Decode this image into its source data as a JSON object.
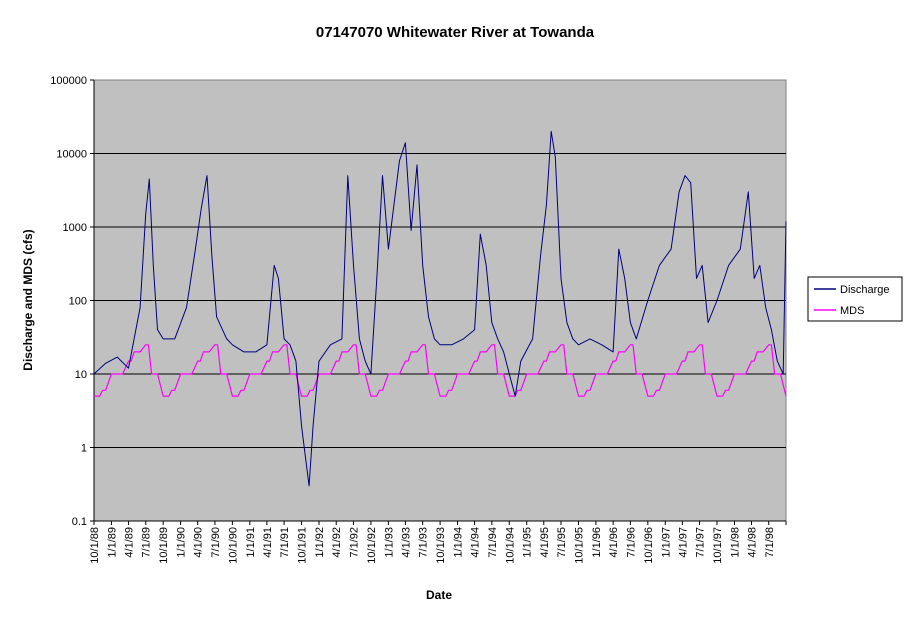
{
  "chart_data": {
    "type": "line",
    "title": "07147070 Whitewater River at Towanda",
    "xlabel": "Date",
    "ylabel": "Discharge and MDS (cfs)",
    "y_scale": "log",
    "ylim": [
      0.1,
      100000
    ],
    "y_ticks": [
      "0.1",
      "1",
      "10",
      "100",
      "1000",
      "10000",
      "100000"
    ],
    "xlim": [
      "10/1/88",
      "9/30/98"
    ],
    "x_ticks": [
      "10/1/88",
      "1/1/89",
      "4/1/89",
      "7/1/89",
      "10/1/89",
      "1/1/90",
      "4/1/90",
      "7/1/90",
      "10/1/90",
      "1/1/91",
      "4/1/91",
      "7/1/91",
      "10/1/91",
      "1/1/92",
      "4/1/92",
      "7/1/92",
      "10/1/92",
      "1/1/93",
      "4/1/93",
      "7/1/93",
      "10/1/93",
      "1/1/94",
      "4/1/94",
      "7/1/94",
      "10/1/94",
      "1/1/95",
      "4/1/95",
      "7/1/95",
      "10/1/95",
      "1/1/96",
      "4/1/96",
      "7/1/96",
      "10/1/96",
      "1/1/97",
      "4/1/97",
      "7/1/97",
      "10/1/97",
      "1/1/98",
      "4/1/98",
      "7/1/98"
    ],
    "grid": true,
    "plot_background": "#c0c0c0",
    "legend_position": "right",
    "series": [
      {
        "name": "Discharge",
        "color": "#000080",
        "x": [
          "10/1/88",
          "12/1/88",
          "2/1/89",
          "4/1/89",
          "6/1/89",
          "7/1/89",
          "7/20/89",
          "8/10/89",
          "9/1/89",
          "10/1/89",
          "12/1/89",
          "2/1/90",
          "3/20/90",
          "4/20/90",
          "5/20/90",
          "6/15/90",
          "7/10/90",
          "8/10/90",
          "9/1/90",
          "10/1/90",
          "12/1/90",
          "2/1/91",
          "4/1/91",
          "5/10/91",
          "6/1/91",
          "7/1/91",
          "8/1/91",
          "9/1/91",
          "10/1/91",
          "10/20/91",
          "11/10/91",
          "12/1/91",
          "1/1/92",
          "3/1/92",
          "5/1/92",
          "6/1/92",
          "7/1/92",
          "8/1/92",
          "9/1/92",
          "10/1/92",
          "11/1/92",
          "12/1/92",
          "1/1/93",
          "3/1/93",
          "4/1/93",
          "5/1/93",
          "6/1/93",
          "7/1/93",
          "8/1/93",
          "9/1/93",
          "10/1/93",
          "12/1/93",
          "2/1/94",
          "4/1/94",
          "5/1/94",
          "6/1/94",
          "7/1/94",
          "8/1/94",
          "9/1/94",
          "10/1/94",
          "11/1/94",
          "12/1/94",
          "2/1/95",
          "3/15/95",
          "4/15/95",
          "5/10/95",
          "6/1/95",
          "7/1/95",
          "8/1/95",
          "9/1/95",
          "10/1/95",
          "12/1/95",
          "2/1/96",
          "4/1/96",
          "5/1/96",
          "6/1/96",
          "7/1/96",
          "8/1/96",
          "10/1/96",
          "12/1/96",
          "2/1/97",
          "3/15/97",
          "4/15/97",
          "5/15/97",
          "6/15/97",
          "7/15/97",
          "8/15/97",
          "10/1/97",
          "12/1/97",
          "2/1/98",
          "3/15/98",
          "4/15/98",
          "5/15/98",
          "6/15/98",
          "7/15/98",
          "8/15/98",
          "9/15/98",
          "9/30/98"
        ],
        "values": [
          10,
          14,
          17,
          12,
          80,
          1500,
          4500,
          300,
          40,
          30,
          30,
          80,
          500,
          1800,
          5000,
          400,
          60,
          40,
          30,
          25,
          20,
          20,
          25,
          300,
          200,
          30,
          25,
          15,
          2,
          0.8,
          0.3,
          2,
          15,
          25,
          30,
          5000,
          300,
          30,
          15,
          10,
          200,
          5000,
          500,
          8000,
          14000,
          900,
          7000,
          300,
          60,
          30,
          25,
          25,
          30,
          40,
          800,
          300,
          50,
          30,
          20,
          10,
          5,
          15,
          30,
          400,
          2000,
          20000,
          9000,
          200,
          50,
          30,
          25,
          30,
          25,
          20,
          500,
          200,
          50,
          30,
          100,
          300,
          500,
          3000,
          5000,
          4000,
          200,
          300,
          50,
          100,
          300,
          500,
          3000,
          200,
          300,
          80,
          40,
          15,
          10,
          1200
        ]
      },
      {
        "name": "MDS",
        "color": "#ff00ff",
        "x": [
          "10/1/88",
          "10/15/88",
          "10/31/88",
          "11/15/88",
          "12/1/88",
          "1/1/89",
          "2/1/89",
          "3/1/89",
          "4/1/89",
          "4/15/89",
          "5/1/89",
          "6/1/89",
          "7/1/89",
          "7/15/89",
          "8/1/89",
          "9/1/89",
          "10/1/89",
          "10/15/89",
          "10/31/89",
          "11/15/89",
          "12/1/89",
          "1/1/90",
          "2/1/90",
          "3/1/90",
          "4/1/90",
          "4/15/90",
          "5/1/90",
          "6/1/90",
          "7/1/90",
          "7/15/90",
          "8/1/90",
          "9/1/90",
          "10/1/90",
          "10/15/90",
          "10/31/90",
          "11/15/90",
          "12/1/90",
          "1/1/91",
          "2/1/91",
          "3/1/91",
          "4/1/91",
          "4/15/91",
          "5/1/91",
          "6/1/91",
          "7/1/91",
          "7/15/91",
          "8/1/91",
          "9/1/91",
          "10/1/91",
          "10/15/91",
          "10/31/91",
          "11/15/91",
          "12/1/91",
          "1/1/92",
          "2/1/92",
          "3/1/92",
          "4/1/92",
          "4/15/92",
          "5/1/92",
          "6/1/92",
          "7/1/92",
          "7/15/92",
          "8/1/92",
          "9/1/92",
          "10/1/92",
          "10/15/92",
          "10/31/92",
          "11/15/92",
          "12/1/92",
          "1/1/93",
          "2/1/93",
          "3/1/93",
          "4/1/93",
          "4/15/93",
          "5/1/93",
          "6/1/93",
          "7/1/93",
          "7/15/93",
          "8/1/93",
          "9/1/93",
          "10/1/93",
          "10/15/93",
          "10/31/93",
          "11/15/93",
          "12/1/93",
          "1/1/94",
          "2/1/94",
          "3/1/94",
          "4/1/94",
          "4/15/94",
          "5/1/94",
          "6/1/94",
          "7/1/94",
          "7/15/94",
          "8/1/94",
          "9/1/94",
          "10/1/94",
          "10/15/94",
          "10/31/94",
          "11/15/94",
          "12/1/94",
          "1/1/95",
          "2/1/95",
          "3/1/95",
          "4/1/95",
          "4/15/95",
          "5/1/95",
          "6/1/95",
          "7/1/95",
          "7/15/95",
          "8/1/95",
          "9/1/95",
          "10/1/95",
          "10/15/95",
          "10/31/95",
          "11/15/95",
          "12/1/95",
          "1/1/96",
          "2/1/96",
          "3/1/96",
          "4/1/96",
          "4/15/96",
          "5/1/96",
          "6/1/96",
          "7/1/96",
          "7/15/96",
          "8/1/96",
          "9/1/96",
          "10/1/96",
          "10/15/96",
          "10/31/96",
          "11/15/96",
          "12/1/96",
          "1/1/97",
          "2/1/97",
          "3/1/97",
          "4/1/97",
          "4/15/97",
          "5/1/97",
          "6/1/97",
          "7/1/97",
          "7/15/97",
          "8/1/97",
          "9/1/97",
          "10/1/97",
          "10/15/97",
          "10/31/97",
          "11/15/97",
          "12/1/97",
          "1/1/98",
          "2/1/98",
          "3/1/98",
          "4/1/98",
          "4/15/98",
          "5/1/98",
          "6/1/98",
          "7/1/98",
          "7/15/98",
          "8/1/98",
          "9/1/98",
          "9/30/98"
        ],
        "values": [
          5,
          5,
          5,
          6,
          6,
          10,
          10,
          10,
          15,
          15,
          20,
          20,
          25,
          25,
          10,
          10,
          5,
          5,
          5,
          6,
          6,
          10,
          10,
          10,
          15,
          15,
          20,
          20,
          25,
          25,
          10,
          10,
          5,
          5,
          5,
          6,
          6,
          10,
          10,
          10,
          15,
          15,
          20,
          20,
          25,
          25,
          10,
          10,
          5,
          5,
          5,
          6,
          6,
          10,
          10,
          10,
          15,
          15,
          20,
          20,
          25,
          25,
          10,
          10,
          5,
          5,
          5,
          6,
          6,
          10,
          10,
          10,
          15,
          15,
          20,
          20,
          25,
          25,
          10,
          10,
          5,
          5,
          5,
          6,
          6,
          10,
          10,
          10,
          15,
          15,
          20,
          20,
          25,
          25,
          10,
          10,
          5,
          5,
          5,
          6,
          6,
          10,
          10,
          10,
          15,
          15,
          20,
          20,
          25,
          25,
          10,
          10,
          5,
          5,
          5,
          6,
          6,
          10,
          10,
          10,
          15,
          15,
          20,
          20,
          25,
          25,
          10,
          10,
          5,
          5,
          5,
          6,
          6,
          10,
          10,
          10,
          15,
          15,
          20,
          20,
          25,
          25,
          10,
          10,
          5,
          5,
          5,
          6,
          6,
          10,
          10,
          10,
          15,
          15,
          20,
          20,
          25,
          25,
          10,
          10,
          5
        ]
      }
    ]
  }
}
